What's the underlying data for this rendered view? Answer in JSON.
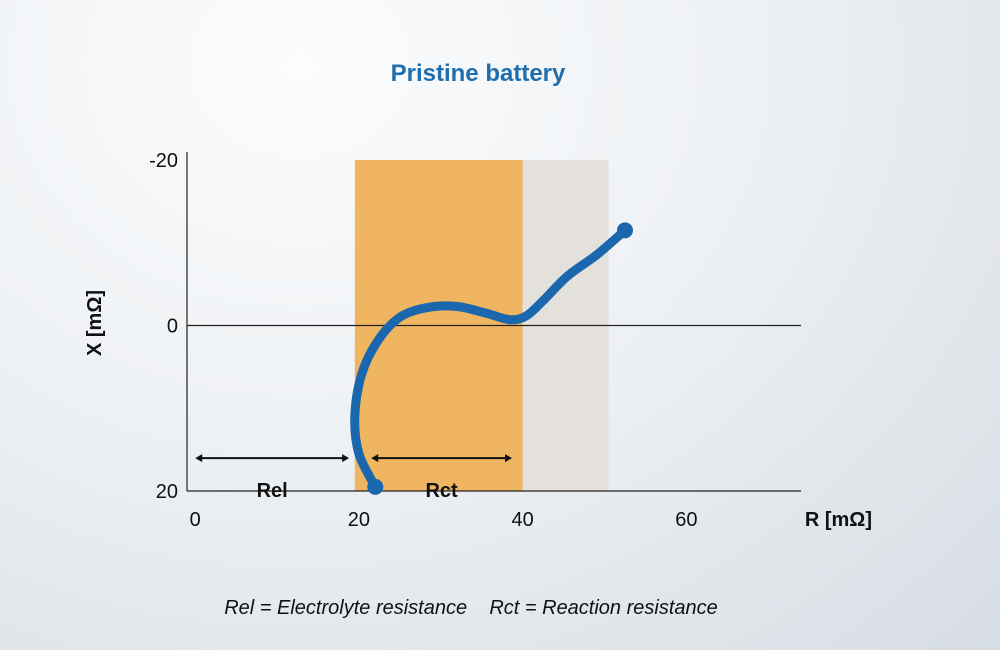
{
  "chart_data": {
    "type": "line",
    "title": "Pristine battery",
    "xlabel": "R [mΩ]",
    "ylabel": "X [mΩ]",
    "xlim": [
      -1,
      74
    ],
    "ylim": [
      -20,
      20
    ],
    "y_inverted": true,
    "x_ticks": [
      "0",
      "20",
      "40",
      "60"
    ],
    "x_tick_values": [
      0,
      20,
      40,
      60
    ],
    "y_ticks": [
      "-20",
      "0",
      "20"
    ],
    "y_tick_values": [
      -20,
      0,
      20
    ],
    "zero_line": 0,
    "grid": false,
    "regions": [
      {
        "name": "Rct band",
        "x0": 19.5,
        "x1": 40.0,
        "color": "#f0b560"
      },
      {
        "name": "post band",
        "x0": 40.0,
        "x1": 50.5,
        "color": "#e4e1dc"
      }
    ],
    "spans": [
      {
        "label": "Rel",
        "x0": 0,
        "x1": 18.8,
        "y": 15
      },
      {
        "label": "Rct",
        "x0": 21.5,
        "x1": 38.7,
        "y": 15
      }
    ],
    "series": [
      {
        "color": "#1a67ad",
        "x": [
          22.0,
          20.0,
          19.5,
          20.3,
          22.2,
          25.0,
          28.5,
          32.0,
          35.5,
          38.5,
          40.5,
          42.5,
          45.5,
          49.0,
          52.5
        ],
        "y": [
          19.5,
          15.5,
          11.0,
          6.0,
          2.0,
          -1.0,
          -2.2,
          -2.3,
          -1.5,
          -0.7,
          -1.2,
          -3.0,
          -6.0,
          -8.5,
          -11.5
        ]
      }
    ],
    "caption": "Rel = Electrolyte resistance    Rct = Reaction resistance"
  }
}
